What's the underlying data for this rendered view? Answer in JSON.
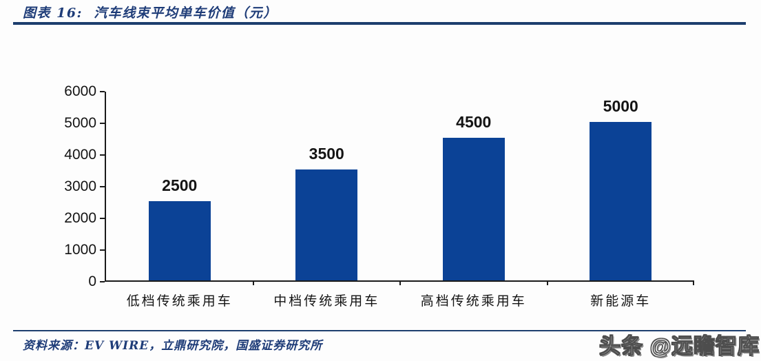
{
  "header": {
    "title": "图表 16:  汽车线束平均单车价值（元）"
  },
  "chart_data": {
    "type": "bar",
    "title": "汽车线束平均单车价值（元）",
    "categories": [
      "低档传统乘用车",
      "中档传统乘用车",
      "高档传统乘用车",
      "新能源车"
    ],
    "values": [
      2500,
      3500,
      4500,
      5000
    ],
    "xlabel": "",
    "ylabel": "",
    "ylim": [
      0,
      6000
    ],
    "yticks": [
      0,
      1000,
      2000,
      3000,
      4000,
      5000,
      6000
    ],
    "grid": false,
    "legend": null,
    "data_labels": true,
    "bar_color": "#0b4296"
  },
  "footer": {
    "source": "资料来源：EV WIRE，立鼎研究院，国盛证券研究所"
  },
  "watermark": {
    "text": "头条 @远瞻智库"
  },
  "colors": {
    "accent_navy": "#1d3e6e",
    "title_text": "#1e3c78",
    "bar_blue": "#0b4296",
    "axis_black": "#1a1a1a"
  }
}
